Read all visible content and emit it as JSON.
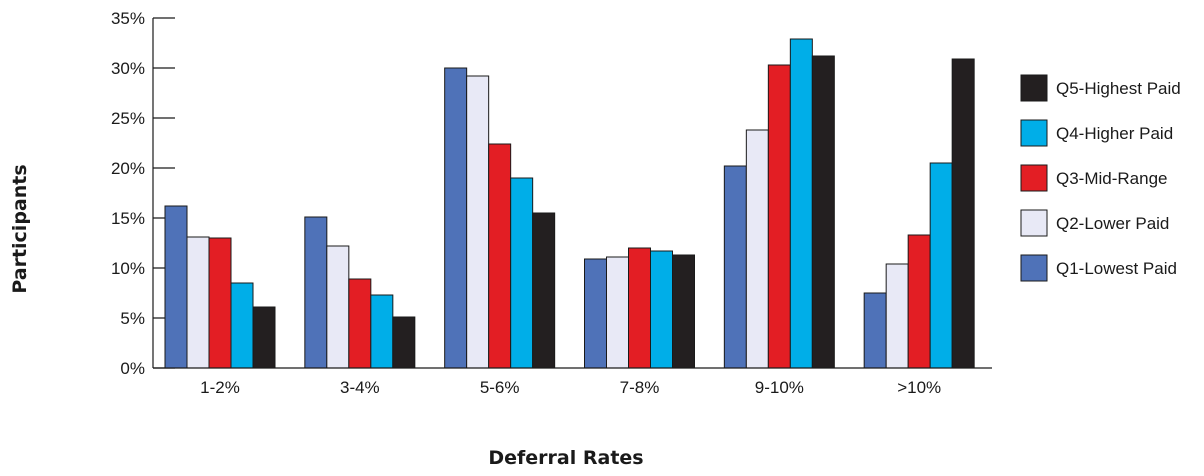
{
  "chart_data": {
    "type": "bar",
    "title": "",
    "xlabel": "Deferral Rates",
    "ylabel": "Participants",
    "categories": [
      "1-2%",
      "3-4%",
      "5-6%",
      "7-8%",
      "9-10%",
      ">10%"
    ],
    "ylim": [
      0,
      35
    ],
    "yticks": [
      "0%",
      "5%",
      "10%",
      "15%",
      "20%",
      "25%",
      "30%",
      "35%"
    ],
    "grid": false,
    "legend_position": "right",
    "series": [
      {
        "name": "Q1-Lowest Paid",
        "color": "#4f72b8",
        "values": [
          16.2,
          15.1,
          30.0,
          10.9,
          20.2,
          7.5
        ]
      },
      {
        "name": "Q2-Lower Paid",
        "color": "#e8e9f6",
        "values": [
          13.1,
          12.2,
          29.2,
          11.1,
          23.8,
          10.4
        ]
      },
      {
        "name": "Q3-Mid-Range",
        "color": "#e31e24",
        "values": [
          13.0,
          8.9,
          22.4,
          12.0,
          30.3,
          13.3
        ]
      },
      {
        "name": "Q4-Higher Paid",
        "color": "#00aee8",
        "values": [
          8.5,
          7.3,
          19.0,
          11.7,
          32.9,
          20.5
        ]
      },
      {
        "name": "Q5-Highest Paid",
        "color": "#231f20",
        "values": [
          6.1,
          5.1,
          15.5,
          11.3,
          31.2,
          30.9
        ]
      }
    ]
  }
}
